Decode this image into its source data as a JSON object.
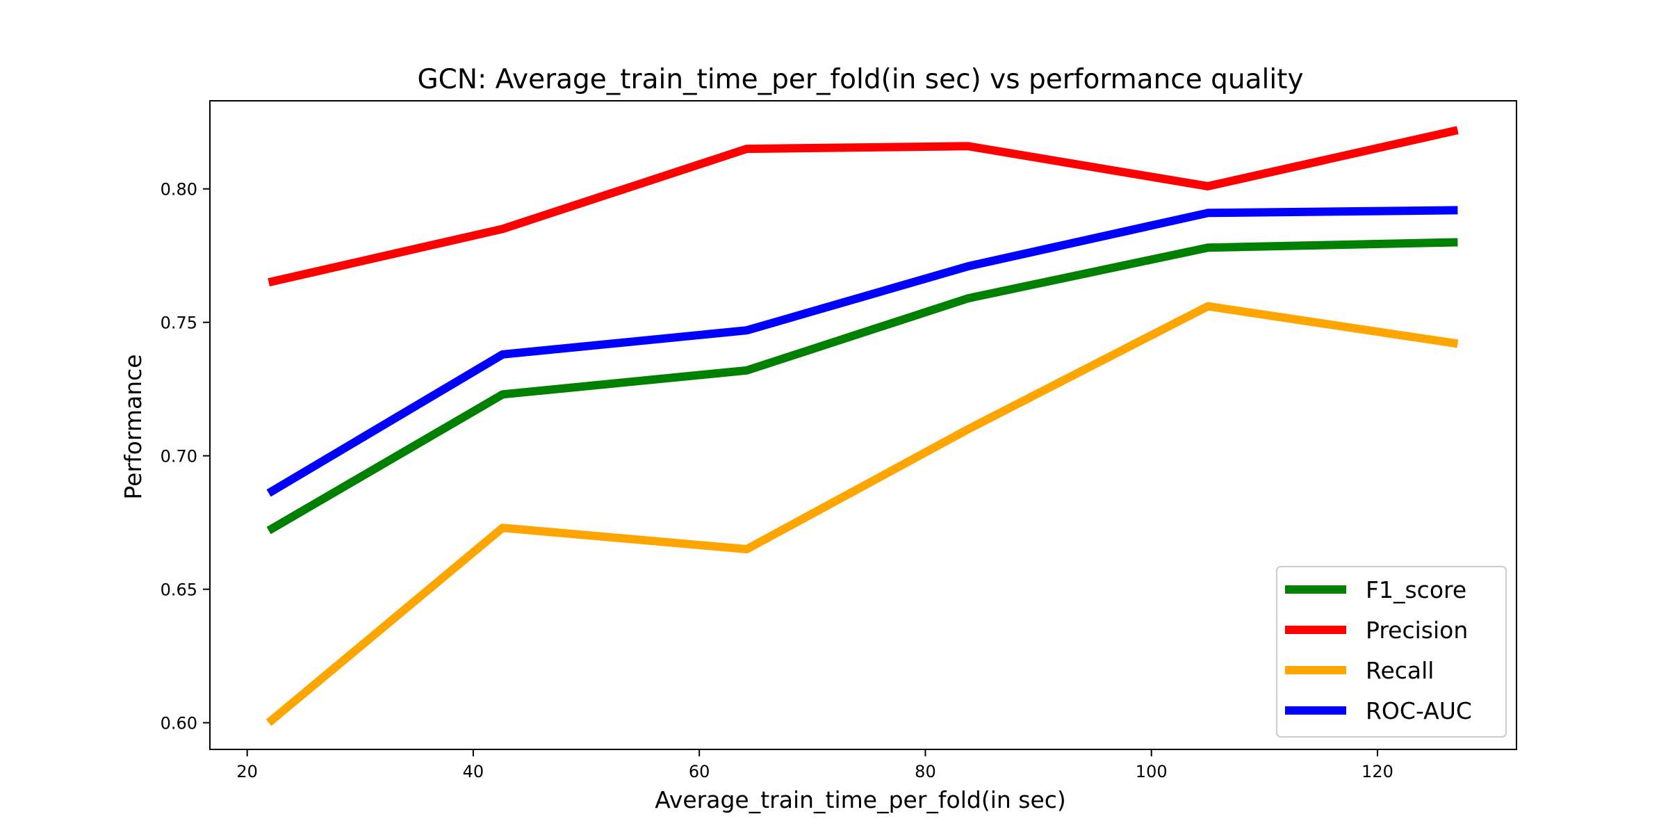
{
  "chart_data": {
    "type": "line",
    "title": "GCN: Average_train_time_per_fold(in sec) vs performance quality",
    "xlabel": "Average_train_time_per_fold(in sec)",
    "ylabel": "Performance",
    "xlim": [
      16.7,
      132.3
    ],
    "ylim": [
      0.59,
      0.833
    ],
    "x_ticks": [
      20,
      40,
      60,
      80,
      100,
      120
    ],
    "y_ticks": [
      0.6,
      0.65,
      0.7,
      0.75,
      0.8
    ],
    "x_tick_labels": [
      "20",
      "40",
      "60",
      "80",
      "100",
      "120"
    ],
    "y_tick_labels": [
      "0.60",
      "0.65",
      "0.70",
      "0.75",
      "0.80"
    ],
    "grid": false,
    "legend_position": "lower-right",
    "x": [
      21.9,
      42.6,
      64.2,
      83.8,
      105.0,
      127.1
    ],
    "series": [
      {
        "name": "F1_score",
        "color": "#008000",
        "values": [
          0.672,
          0.723,
          0.732,
          0.759,
          0.778,
          0.78
        ]
      },
      {
        "name": "Precision",
        "color": "#ff0000",
        "values": [
          0.765,
          0.785,
          0.815,
          0.816,
          0.801,
          0.822
        ]
      },
      {
        "name": "Recall",
        "color": "#ffa500",
        "values": [
          0.6,
          0.673,
          0.665,
          0.71,
          0.756,
          0.742
        ]
      },
      {
        "name": "ROC-AUC",
        "color": "#0000ff",
        "values": [
          0.686,
          0.738,
          0.747,
          0.771,
          0.791,
          0.792
        ]
      }
    ]
  }
}
